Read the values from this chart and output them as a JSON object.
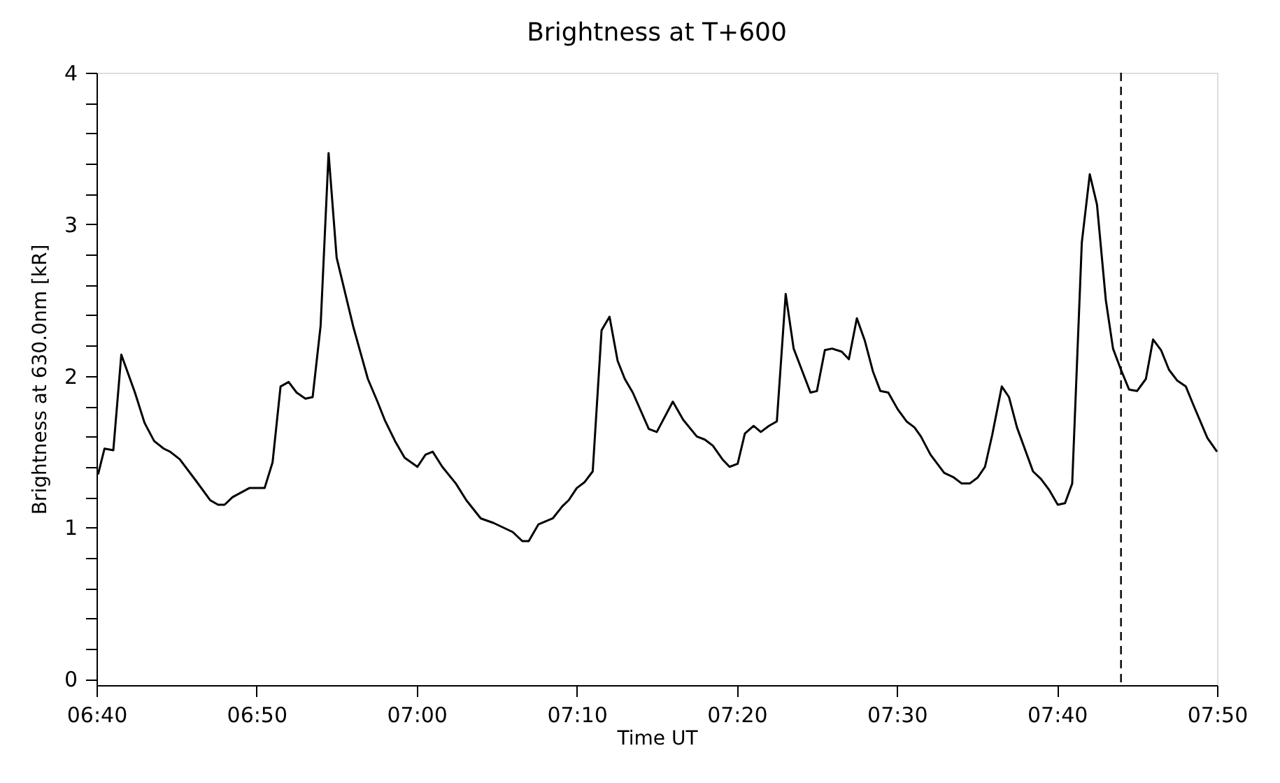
{
  "chart_data": {
    "type": "line",
    "title": "Brightness at T+600",
    "xlabel": "Time UT",
    "ylabel": "Brightness at 630.0nm [kR]",
    "xlim": [
      6.6667,
      7.8333
    ],
    "xticks": [
      {
        "value": 6.6667,
        "label": "06:40"
      },
      {
        "value": 6.8333,
        "label": "06:50"
      },
      {
        "value": 7,
        "label": "07:00"
      },
      {
        "value": 7.1667,
        "label": "07:10"
      },
      {
        "value": 7.3333,
        "label": "07:20"
      },
      {
        "value": 7.5,
        "label": "07:30"
      },
      {
        "value": 7.6667,
        "label": "07:40"
      },
      {
        "value": 7.8333,
        "label": "07:50"
      }
    ],
    "ylim": [
      -0.04,
      4
    ],
    "yticks": [
      0,
      {
        "value": 0.2,
        "label": null
      },
      {
        "value": 0.4,
        "label": null
      },
      {
        "value": 0.6,
        "label": null
      },
      {
        "value": 0.8,
        "label": null
      },
      1,
      {
        "value": 1.2,
        "label": null
      },
      {
        "value": 1.4,
        "label": null
      },
      {
        "value": 1.6,
        "label": null
      },
      {
        "value": 1.8,
        "label": null
      },
      2,
      {
        "value": 2.2,
        "label": null
      },
      {
        "value": 2.4,
        "label": null
      },
      {
        "value": 2.6,
        "label": null
      },
      {
        "value": 2.8,
        "label": null
      },
      3,
      {
        "value": 3.2,
        "label": null
      },
      {
        "value": 3.4,
        "label": null
      },
      {
        "value": 3.6,
        "label": null
      },
      {
        "value": 3.8,
        "label": null
      },
      4
    ],
    "grid": false,
    "marker": "none",
    "line_style": "solid",
    "ref_lines": [
      {
        "axis": "x",
        "value": 7.7333,
        "line_style": "dashed",
        "color": "#000000"
      }
    ],
    "series": [
      {
        "color": "#000000",
        "x": [
          6.6683,
          6.675,
          6.6842,
          6.6925,
          6.7067,
          6.7167,
          6.7267,
          6.7367,
          6.7433,
          6.7533,
          6.77,
          6.785,
          6.7933,
          6.8,
          6.8083,
          6.8258,
          6.8417,
          6.85,
          6.8583,
          6.8667,
          6.875,
          6.8842,
          6.8917,
          6.9,
          6.9083,
          6.9167,
          6.9342,
          6.9492,
          6.9592,
          6.9667,
          6.9775,
          6.9875,
          7.0008,
          7.0092,
          7.0167,
          7.0267,
          7.0408,
          7.0517,
          7.0667,
          7.08,
          7.09,
          7.1,
          7.11,
          7.1167,
          7.1267,
          7.1417,
          7.1517,
          7.1583,
          7.1667,
          7.175,
          7.1833,
          7.1925,
          7.2008,
          7.2092,
          7.2167,
          7.225,
          7.2417,
          7.25,
          7.2667,
          7.2775,
          7.2917,
          7.3,
          7.3083,
          7.3183,
          7.3258,
          7.3342,
          7.3417,
          7.3508,
          7.3583,
          7.3667,
          7.375,
          7.3842,
          7.3925,
          7.41,
          7.4167,
          7.425,
          7.4325,
          7.4425,
          7.45,
          7.4583,
          7.4667,
          7.475,
          7.4828,
          7.491,
          7.5008,
          7.51,
          7.5183,
          7.525,
          7.535,
          7.5492,
          7.5592,
          7.5675,
          7.5758,
          7.5842,
          7.5917,
          7.5992,
          7.6092,
          7.6167,
          7.625,
          7.6417,
          7.65,
          7.6583,
          7.6675,
          7.675,
          7.6825,
          7.6925,
          7.7008,
          7.7083,
          7.7175,
          7.725,
          7.7333,
          7.7417,
          7.75,
          7.7592,
          7.7667,
          7.775,
          7.7833,
          7.7917,
          7.8008,
          7.8092,
          7.8233,
          7.8333
        ],
        "values": [
          1.35,
          1.52,
          1.51,
          2.14,
          1.89,
          1.69,
          1.57,
          1.52,
          1.5,
          1.45,
          1.31,
          1.18,
          1.15,
          1.15,
          1.2,
          1.26,
          1.26,
          1.43,
          1.93,
          1.96,
          1.89,
          1.85,
          1.86,
          2.33,
          3.47,
          2.78,
          2.32,
          1.98,
          1.83,
          1.71,
          1.57,
          1.46,
          1.4,
          1.48,
          1.5,
          1.4,
          1.29,
          1.18,
          1.06,
          1.03,
          1.0,
          0.97,
          0.91,
          0.91,
          1.02,
          1.06,
          1.14,
          1.18,
          1.26,
          1.3,
          1.37,
          2.3,
          2.39,
          2.1,
          1.98,
          1.89,
          1.65,
          1.63,
          1.83,
          1.71,
          1.6,
          1.58,
          1.54,
          1.45,
          1.4,
          1.42,
          1.62,
          1.67,
          1.63,
          1.67,
          1.7,
          2.54,
          2.18,
          1.89,
          1.9,
          2.17,
          2.18,
          2.16,
          2.11,
          2.38,
          2.23,
          2.03,
          1.9,
          1.89,
          1.78,
          1.7,
          1.66,
          1.6,
          1.48,
          1.36,
          1.33,
          1.29,
          1.29,
          1.33,
          1.4,
          1.61,
          1.93,
          1.86,
          1.66,
          1.37,
          1.32,
          1.25,
          1.15,
          1.16,
          1.29,
          2.88,
          3.33,
          3.13,
          2.5,
          2.18,
          2.04,
          1.91,
          1.9,
          1.98,
          2.24,
          2.17,
          2.04,
          1.97,
          1.93,
          1.8,
          1.59,
          1.5
        ]
      }
    ]
  }
}
